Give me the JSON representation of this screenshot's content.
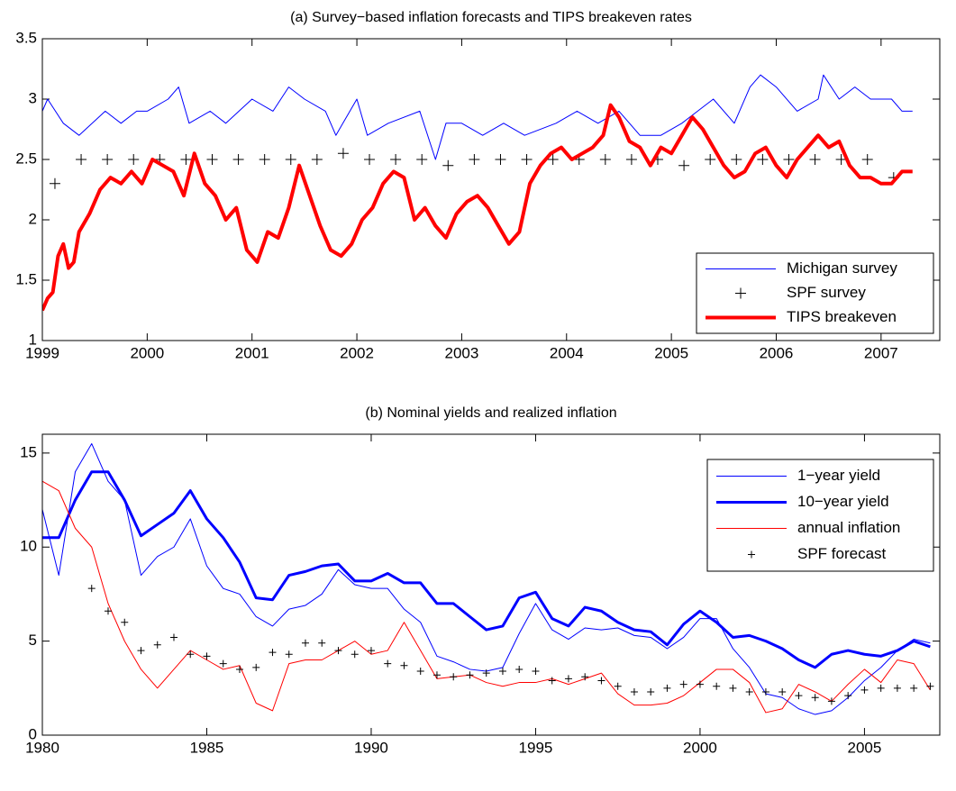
{
  "chart_data": [
    {
      "type": "line",
      "title": "(a) Survey−based inflation forecasts and TIPS breakeven rates",
      "xlim": [
        1999,
        2007.56
      ],
      "xticks": [
        1999,
        2000,
        2001,
        2002,
        2003,
        2004,
        2005,
        2006,
        2007
      ],
      "ylim": [
        1,
        3.5
      ],
      "yticks": [
        1,
        1.5,
        2,
        2.5,
        3,
        3.5
      ],
      "legend": "lower right",
      "series": [
        {
          "name": "Michigan survey",
          "color": "#0000ff",
          "style": "line",
          "linewidth": 1,
          "x": [
            1999.0,
            1999.05,
            1999.2,
            1999.35,
            1999.6,
            1999.75,
            1999.9,
            2000.0,
            2000.2,
            2000.3,
            2000.4,
            2000.6,
            2000.75,
            2001.0,
            2001.2,
            2001.35,
            2001.5,
            2001.7,
            2001.8,
            2002.0,
            2002.1,
            2002.3,
            2002.6,
            2002.75,
            2002.85,
            2003.0,
            2003.2,
            2003.4,
            2003.6,
            2003.9,
            2004.1,
            2004.3,
            2004.5,
            2004.7,
            2004.9,
            2005.1,
            2005.25,
            2005.4,
            2005.6,
            2005.75,
            2005.85,
            2006.0,
            2006.2,
            2006.4,
            2006.45,
            2006.6,
            2006.75,
            2006.9,
            2007.1,
            2007.2,
            2007.3
          ],
          "values": [
            2.9,
            3.0,
            2.8,
            2.7,
            2.9,
            2.8,
            2.9,
            2.9,
            3.0,
            3.1,
            2.8,
            2.9,
            2.8,
            3.0,
            2.9,
            3.1,
            3.0,
            2.9,
            2.7,
            3.0,
            2.7,
            2.8,
            2.9,
            2.5,
            2.8,
            2.8,
            2.7,
            2.8,
            2.7,
            2.8,
            2.9,
            2.8,
            2.9,
            2.7,
            2.7,
            2.8,
            2.9,
            3.0,
            2.8,
            3.1,
            3.2,
            3.1,
            2.9,
            3.0,
            3.2,
            3.0,
            3.1,
            3.0,
            3.0,
            2.9,
            2.9
          ]
        },
        {
          "name": "SPF survey",
          "color": "#000000",
          "style": "marker",
          "markersize": 6,
          "x": [
            1999.12,
            1999.37,
            1999.62,
            1999.87,
            2000.12,
            2000.37,
            2000.62,
            2000.87,
            2001.12,
            2001.37,
            2001.62,
            2001.87,
            2002.12,
            2002.37,
            2002.62,
            2002.87,
            2003.12,
            2003.37,
            2003.62,
            2003.87,
            2004.12,
            2004.37,
            2004.62,
            2004.87,
            2005.12,
            2005.37,
            2005.62,
            2005.87,
            2006.12,
            2006.37,
            2006.62,
            2006.87,
            2007.12
          ],
          "values": [
            2.3,
            2.5,
            2.5,
            2.5,
            2.5,
            2.5,
            2.5,
            2.5,
            2.5,
            2.5,
            2.5,
            2.55,
            2.5,
            2.5,
            2.5,
            2.45,
            2.5,
            2.5,
            2.5,
            2.5,
            2.5,
            2.5,
            2.5,
            2.5,
            2.45,
            2.5,
            2.5,
            2.5,
            2.5,
            2.5,
            2.5,
            2.5,
            2.35
          ]
        },
        {
          "name": "TIPS breakeven",
          "color": "#ff0000",
          "style": "line",
          "linewidth": 4,
          "x": [
            1999.0,
            1999.05,
            1999.1,
            1999.15,
            1999.2,
            1999.25,
            1999.3,
            1999.35,
            1999.45,
            1999.55,
            1999.65,
            1999.75,
            1999.85,
            1999.95,
            2000.05,
            2000.15,
            2000.25,
            2000.35,
            2000.45,
            2000.55,
            2000.65,
            2000.75,
            2000.85,
            2000.95,
            2001.05,
            2001.15,
            2001.25,
            2001.35,
            2001.45,
            2001.55,
            2001.65,
            2001.75,
            2001.85,
            2001.95,
            2002.05,
            2002.15,
            2002.25,
            2002.35,
            2002.45,
            2002.55,
            2002.65,
            2002.75,
            2002.85,
            2002.95,
            2003.05,
            2003.15,
            2003.25,
            2003.35,
            2003.45,
            2003.55,
            2003.65,
            2003.75,
            2003.85,
            2003.95,
            2004.05,
            2004.15,
            2004.25,
            2004.35,
            2004.42,
            2004.5,
            2004.6,
            2004.7,
            2004.8,
            2004.9,
            2005.0,
            2005.1,
            2005.2,
            2005.3,
            2005.4,
            2005.5,
            2005.6,
            2005.7,
            2005.8,
            2005.9,
            2006.0,
            2006.1,
            2006.2,
            2006.3,
            2006.4,
            2006.5,
            2006.6,
            2006.7,
            2006.8,
            2006.9,
            2007.0,
            2007.1,
            2007.2,
            2007.3
          ],
          "values": [
            1.25,
            1.35,
            1.4,
            1.7,
            1.8,
            1.6,
            1.65,
            1.9,
            2.05,
            2.25,
            2.35,
            2.3,
            2.4,
            2.3,
            2.5,
            2.45,
            2.4,
            2.2,
            2.55,
            2.3,
            2.2,
            2.0,
            2.1,
            1.75,
            1.65,
            1.9,
            1.85,
            2.1,
            2.45,
            2.2,
            1.95,
            1.75,
            1.7,
            1.8,
            2.0,
            2.1,
            2.3,
            2.4,
            2.35,
            2.0,
            2.1,
            1.95,
            1.85,
            2.05,
            2.15,
            2.2,
            2.1,
            1.95,
            1.8,
            1.9,
            2.3,
            2.45,
            2.55,
            2.6,
            2.5,
            2.55,
            2.6,
            2.7,
            2.95,
            2.85,
            2.65,
            2.6,
            2.45,
            2.6,
            2.55,
            2.7,
            2.85,
            2.75,
            2.6,
            2.45,
            2.35,
            2.4,
            2.55,
            2.6,
            2.45,
            2.35,
            2.5,
            2.6,
            2.7,
            2.6,
            2.65,
            2.45,
            2.35,
            2.35,
            2.3,
            2.3,
            2.4,
            2.4
          ]
        }
      ]
    },
    {
      "type": "line",
      "title": "(b) Nominal yields and realized inflation",
      "xlim": [
        1980,
        2007.29
      ],
      "xticks": [
        1980,
        1985,
        1990,
        1995,
        2000,
        2005
      ],
      "ylim": [
        0,
        16
      ],
      "yticks": [
        0,
        5,
        10,
        15
      ],
      "legend": "upper right",
      "x": [
        1980.0,
        1980.5,
        1981.0,
        1981.5,
        1982.0,
        1982.5,
        1983.0,
        1983.5,
        1984.0,
        1984.5,
        1985.0,
        1985.5,
        1986.0,
        1986.5,
        1987.0,
        1987.5,
        1988.0,
        1988.5,
        1989.0,
        1989.5,
        1990.0,
        1990.5,
        1991.0,
        1991.5,
        1992.0,
        1992.5,
        1993.0,
        1993.5,
        1994.0,
        1994.5,
        1995.0,
        1995.5,
        1996.0,
        1996.5,
        1997.0,
        1997.5,
        1998.0,
        1998.5,
        1999.0,
        1999.5,
        2000.0,
        2000.5,
        2001.0,
        2001.5,
        2002.0,
        2002.5,
        2003.0,
        2003.5,
        2004.0,
        2004.5,
        2005.0,
        2005.5,
        2006.0,
        2006.5,
        2007.0
      ],
      "series": [
        {
          "name": "1−year yield",
          "color": "#0000ff",
          "style": "line",
          "linewidth": 1,
          "values": [
            12,
            8.5,
            14,
            15.5,
            13.5,
            12.5,
            8.5,
            9.5,
            10,
            11.5,
            9,
            7.8,
            7.5,
            6.3,
            5.8,
            6.7,
            6.9,
            7.5,
            8.8,
            8.0,
            7.8,
            7.8,
            6.7,
            6.0,
            4.2,
            3.9,
            3.5,
            3.4,
            3.6,
            5.4,
            7.0,
            5.6,
            5.1,
            5.7,
            5.6,
            5.7,
            5.3,
            5.2,
            4.6,
            5.2,
            6.2,
            6.2,
            4.6,
            3.6,
            2.2,
            2.0,
            1.4,
            1.1,
            1.3,
            2.0,
            2.9,
            3.6,
            4.5,
            5.1,
            4.9
          ]
        },
        {
          "name": "10−year yield",
          "color": "#0000ff",
          "style": "line",
          "linewidth": 3,
          "values": [
            10.5,
            10.5,
            12.5,
            14,
            14,
            12.5,
            10.6,
            11.2,
            11.8,
            13,
            11.5,
            10.5,
            9.2,
            7.3,
            7.2,
            8.5,
            8.7,
            9.0,
            9.1,
            8.2,
            8.2,
            8.6,
            8.1,
            8.1,
            7.0,
            7.0,
            6.3,
            5.6,
            5.8,
            7.3,
            7.6,
            6.2,
            5.8,
            6.8,
            6.6,
            6.0,
            5.6,
            5.5,
            4.8,
            5.9,
            6.6,
            6.0,
            5.2,
            5.3,
            5.0,
            4.6,
            4.0,
            3.6,
            4.3,
            4.5,
            4.3,
            4.2,
            4.5,
            5.0,
            4.7
          ]
        },
        {
          "name": "annual inflation",
          "color": "#ff0000",
          "style": "line",
          "linewidth": 1,
          "values": [
            13.5,
            13,
            11,
            10,
            7,
            5,
            3.5,
            2.5,
            3.5,
            4.5,
            4.0,
            3.5,
            3.7,
            1.7,
            1.3,
            3.8,
            4.0,
            4.0,
            4.5,
            5.0,
            4.3,
            4.5,
            6.0,
            4.5,
            3.0,
            3.1,
            3.2,
            2.8,
            2.6,
            2.8,
            2.8,
            3.0,
            2.7,
            3.0,
            3.3,
            2.2,
            1.6,
            1.6,
            1.7,
            2.1,
            2.8,
            3.5,
            3.5,
            2.8,
            1.2,
            1.4,
            2.7,
            2.3,
            1.8,
            2.7,
            3.5,
            2.8,
            4.0,
            3.8,
            2.4
          ]
        },
        {
          "name": "SPF forecast",
          "color": "#000000",
          "style": "marker",
          "markersize": 4,
          "x": [
            1981.5,
            1982.0,
            1982.5,
            1983.0,
            1983.5,
            1984.0,
            1984.5,
            1985.0,
            1985.5,
            1986.0,
            1986.5,
            1987.0,
            1987.5,
            1988.0,
            1988.5,
            1989.0,
            1989.5,
            1990.0,
            1990.5,
            1991.0,
            1991.5,
            1992.0,
            1992.5,
            1993.0,
            1993.5,
            1994.0,
            1994.5,
            1995.0,
            1995.5,
            1996.0,
            1996.5,
            1997.0,
            1997.5,
            1998.0,
            1998.5,
            1999.0,
            1999.5,
            2000.0,
            2000.5,
            2001.0,
            2001.5,
            2002.0,
            2002.5,
            2003.0,
            2003.5,
            2004.0,
            2004.5,
            2005.0,
            2005.5,
            2006.0,
            2006.5,
            2007.0
          ],
          "values": [
            7.8,
            6.6,
            6.0,
            4.5,
            4.8,
            5.2,
            4.3,
            4.2,
            3.8,
            3.5,
            3.6,
            4.4,
            4.3,
            4.9,
            4.9,
            4.5,
            4.3,
            4.5,
            3.8,
            3.7,
            3.4,
            3.2,
            3.1,
            3.2,
            3.3,
            3.4,
            3.5,
            3.4,
            2.9,
            3.0,
            3.1,
            2.9,
            2.6,
            2.3,
            2.3,
            2.5,
            2.7,
            2.7,
            2.6,
            2.5,
            2.3,
            2.3,
            2.3,
            2.1,
            2.0,
            1.8,
            2.1,
            2.4,
            2.5,
            2.5,
            2.5,
            2.6
          ]
        }
      ]
    }
  ]
}
